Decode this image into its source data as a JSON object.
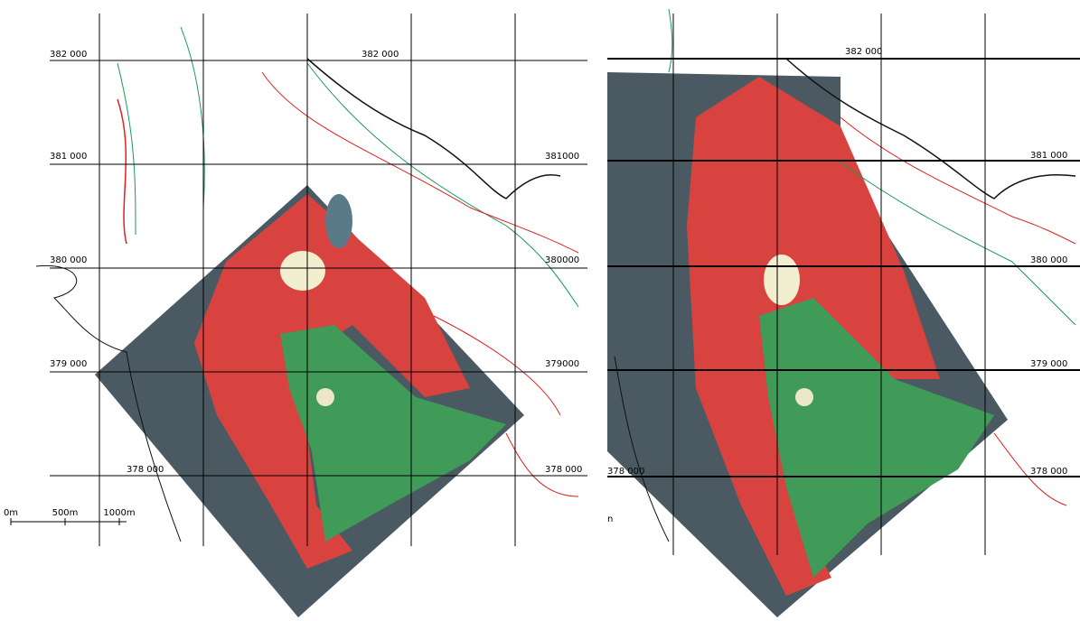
{
  "left_panel": {
    "northing_labels": [
      "382 000",
      "382 000",
      "381 000",
      "381000",
      "380 000",
      "380000",
      "379 000",
      "379000",
      "378 000",
      "378 000"
    ],
    "scale_bar": [
      "0m",
      "500m",
      "1000m"
    ]
  },
  "right_panel": {
    "northing_labels": [
      "382 000",
      "381 000",
      "380 000",
      "379 000",
      "378 000",
      "378 000"
    ],
    "scale_bar": [
      "n"
    ]
  }
}
